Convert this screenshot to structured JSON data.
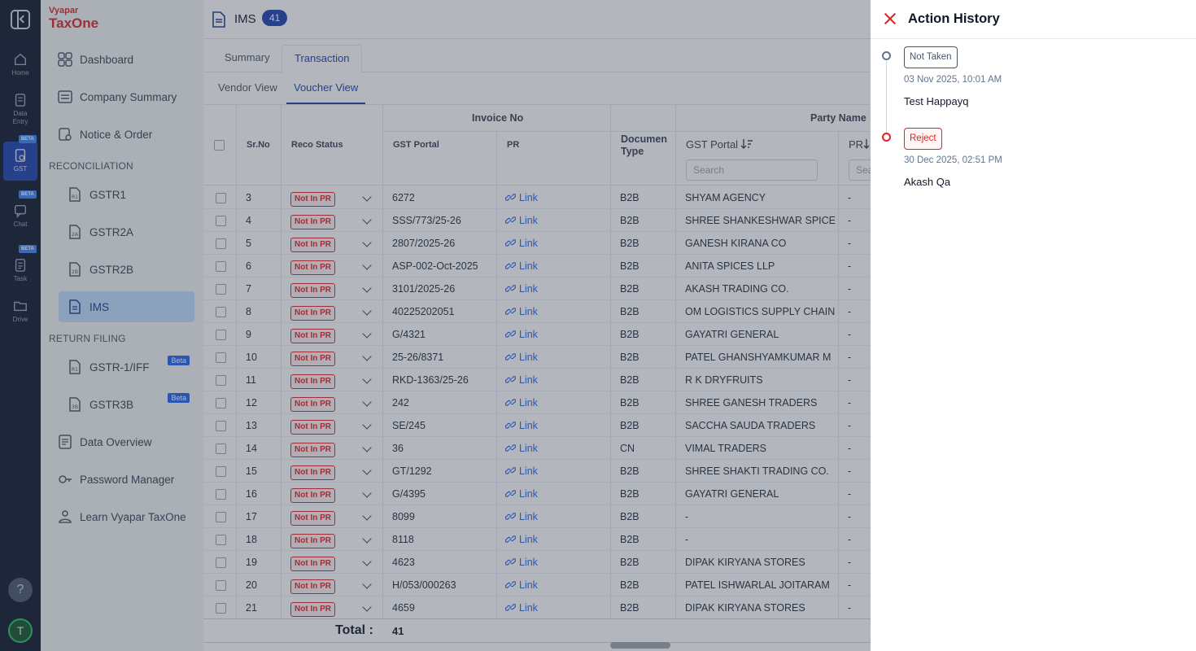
{
  "rail": {
    "items": [
      {
        "label": "Home",
        "beta": ""
      },
      {
        "label": "Data Entry",
        "beta": ""
      },
      {
        "label": "GST",
        "beta": "BETA"
      },
      {
        "label": "Chat",
        "beta": "BETA"
      },
      {
        "label": "Task",
        "beta": "BETA"
      },
      {
        "label": "Drive",
        "beta": ""
      }
    ],
    "help": "?",
    "avatar": "T"
  },
  "sidebar": {
    "brand_top": "Vyapar",
    "brand_bottom": "TaxOne",
    "nav": [
      "Dashboard",
      "Company Summary",
      "Notice & Order"
    ],
    "reconciliation_label": "RECONCILIATION",
    "reconciliation": [
      "GSTR1",
      "GSTR2A",
      "GSTR2B",
      "IMS"
    ],
    "return_filing_label": "RETURN FILING",
    "return_filing": [
      {
        "label": "GSTR-1/IFF",
        "beta": "Beta"
      },
      {
        "label": "GSTR3B",
        "beta": "Beta"
      }
    ],
    "bottom_nav": [
      "Data Overview",
      "Password Manager",
      "Learn Vyapar TaxOne"
    ]
  },
  "page": {
    "title": "IMS",
    "count": "41",
    "tabs": [
      "Summary",
      "Transaction"
    ],
    "subtabs": [
      "Vendor View",
      "Voucher View"
    ]
  },
  "table": {
    "headers": {
      "srno": "Sr.No",
      "reco": "Reco Status",
      "invoice_group": "Invoice No",
      "gst_portal": "GST Portal",
      "pr": "PR",
      "doc_type_1": "Documen",
      "doc_type_2": "Type",
      "party_group": "Party Name",
      "party_gst": "GST Portal",
      "party_pr": "PR",
      "search_placeholder": "Search",
      "search_placeholder_short": "Sea"
    },
    "rows": [
      {
        "sr": "3",
        "status": "Not In PR",
        "invoice": "6272",
        "pr": "Link",
        "doc": "B2B",
        "party": "SHYAM AGENCY",
        "ppr": "-"
      },
      {
        "sr": "4",
        "status": "Not In PR",
        "invoice": "SSS/773/25-26",
        "pr": "Link",
        "doc": "B2B",
        "party": "SHREE SHANKESHWAR SPICE",
        "ppr": "-"
      },
      {
        "sr": "5",
        "status": "Not In PR",
        "invoice": "2807/2025-26",
        "pr": "Link",
        "doc": "B2B",
        "party": "GANESH KIRANA CO",
        "ppr": "-"
      },
      {
        "sr": "6",
        "status": "Not In PR",
        "invoice": "ASP-002-Oct-2025",
        "pr": "Link",
        "doc": "B2B",
        "party": "ANITA SPICES LLP",
        "ppr": "-"
      },
      {
        "sr": "7",
        "status": "Not In PR",
        "invoice": "3101/2025-26",
        "pr": "Link",
        "doc": "B2B",
        "party": "AKASH TRADING CO.",
        "ppr": "-"
      },
      {
        "sr": "8",
        "status": "Not In PR",
        "invoice": "40225202051",
        "pr": "Link",
        "doc": "B2B",
        "party": "OM LOGISTICS SUPPLY CHAIN",
        "ppr": "-"
      },
      {
        "sr": "9",
        "status": "Not In PR",
        "invoice": "G/4321",
        "pr": "Link",
        "doc": "B2B",
        "party": "GAYATRI GENERAL",
        "ppr": "-"
      },
      {
        "sr": "10",
        "status": "Not In PR",
        "invoice": "25-26/8371",
        "pr": "Link",
        "doc": "B2B",
        "party": "PATEL GHANSHYAMKUMAR M",
        "ppr": "-"
      },
      {
        "sr": "11",
        "status": "Not In PR",
        "invoice": "RKD-1363/25-26",
        "pr": "Link",
        "doc": "B2B",
        "party": "R K DRYFRUITS",
        "ppr": "-"
      },
      {
        "sr": "12",
        "status": "Not In PR",
        "invoice": "242",
        "pr": "Link",
        "doc": "B2B",
        "party": "SHREE GANESH TRADERS",
        "ppr": "-"
      },
      {
        "sr": "13",
        "status": "Not In PR",
        "invoice": "SE/245",
        "pr": "Link",
        "doc": "B2B",
        "party": "SACCHA SAUDA TRADERS",
        "ppr": "-"
      },
      {
        "sr": "14",
        "status": "Not In PR",
        "invoice": "36",
        "pr": "Link",
        "doc": "CN",
        "party": "VIMAL TRADERS",
        "ppr": "-"
      },
      {
        "sr": "15",
        "status": "Not In PR",
        "invoice": "GT/1292",
        "pr": "Link",
        "doc": "B2B",
        "party": "SHREE SHAKTI TRADING CO.",
        "ppr": "-"
      },
      {
        "sr": "16",
        "status": "Not In PR",
        "invoice": "G/4395",
        "pr": "Link",
        "doc": "B2B",
        "party": "GAYATRI GENERAL",
        "ppr": "-"
      },
      {
        "sr": "17",
        "status": "Not In PR",
        "invoice": "8099",
        "pr": "Link",
        "doc": "B2B",
        "party": "-",
        "ppr": "-"
      },
      {
        "sr": "18",
        "status": "Not In PR",
        "invoice": "8118",
        "pr": "Link",
        "doc": "B2B",
        "party": "-",
        "ppr": "-"
      },
      {
        "sr": "19",
        "status": "Not In PR",
        "invoice": "4623",
        "pr": "Link",
        "doc": "B2B",
        "party": "DIPAK KIRYANA STORES",
        "ppr": "-"
      },
      {
        "sr": "20",
        "status": "Not In PR",
        "invoice": "H/053/000263",
        "pr": "Link",
        "doc": "B2B",
        "party": "PATEL ISHWARLAL JOITARAM",
        "ppr": "-"
      },
      {
        "sr": "21",
        "status": "Not In PR",
        "invoice": "4659",
        "pr": "Link",
        "doc": "B2B",
        "party": "DIPAK KIRYANA STORES",
        "ppr": "-"
      }
    ],
    "total_label": "Total :",
    "total_value": "41"
  },
  "drawer": {
    "title": "Action History",
    "events": [
      {
        "status": "Not Taken",
        "time": "03 Nov 2025, 10:01 AM",
        "user": "Test Happayq"
      },
      {
        "status": "Reject",
        "time": "30 Dec 2025, 02:51 PM",
        "user": "Akash Qa"
      }
    ]
  },
  "colors": {
    "brand": "#dc2626",
    "accent": "#1e40af",
    "link": "#2563eb",
    "rail_bg": "#0f172a"
  }
}
